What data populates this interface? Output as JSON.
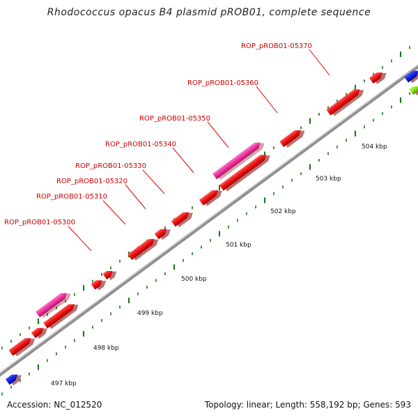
{
  "header": {
    "title": "Rhodococcus opacus B4 plasmid pROB01, complete sequence"
  },
  "footer": {
    "accession": "Accession: NC_012520",
    "summary": "Topology: linear; Length: 558,192 bp; Genes: 593"
  },
  "colors": {
    "gene_red": "#ee1111",
    "gene_pink": "#ee3399",
    "gene_blue": "#1122dd",
    "gene_green": "#88dd11",
    "backbone": "#999999",
    "ticks": "#117711",
    "label": "#cc0000"
  },
  "gene_labels": [
    "ROP_pROB01-05300",
    "ROP_pROB01-05310",
    "ROP_pROB01-05320",
    "ROP_pROB01-05330",
    "ROP_pROB01-05340",
    "ROP_pROB01-05350",
    "ROP_pROB01-05360",
    "ROP_pROB01-05370"
  ],
  "scale_labels": [
    "497 kbp",
    "498 kbp",
    "499 kbp",
    "500 kbp",
    "501 kbp",
    "502 kbp",
    "503 kbp",
    "504 kbp"
  ]
}
